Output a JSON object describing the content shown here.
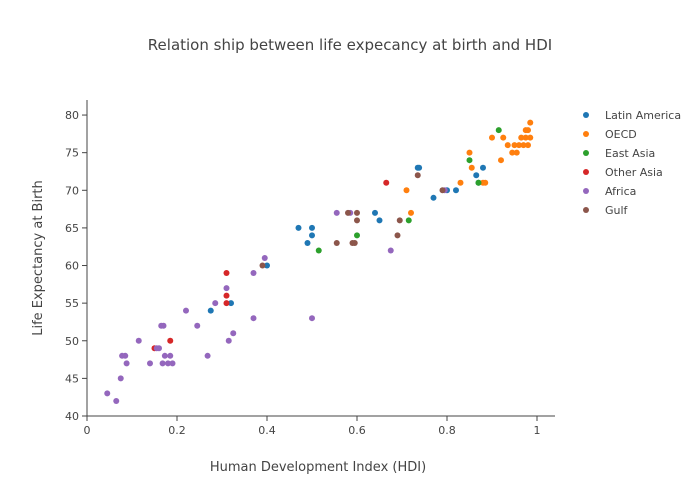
{
  "chart_data": {
    "type": "scatter",
    "title": "Relation ship between life expecancy at birth and HDI",
    "xlabel": "Human Development Index (HDI)",
    "ylabel": "Life Expectancy at Birth",
    "xlim": [
      0,
      1.04
    ],
    "ylim": [
      40,
      82
    ],
    "xticks": [
      0,
      0.2,
      0.4,
      0.6,
      0.8,
      1
    ],
    "xtick_labels": [
      "0",
      "0.2",
      "0.4",
      "0.6",
      "0.8",
      "1"
    ],
    "yticks": [
      40,
      45,
      50,
      55,
      60,
      65,
      70,
      75,
      80
    ],
    "ytick_labels": [
      "40",
      "45",
      "50",
      "55",
      "60",
      "65",
      "70",
      "75",
      "80"
    ],
    "grid": false,
    "legend_position": "top-right",
    "series": [
      {
        "name": "Latin America",
        "color": "#1f77b4",
        "points": [
          [
            0.275,
            54
          ],
          [
            0.32,
            55
          ],
          [
            0.4,
            60
          ],
          [
            0.47,
            65
          ],
          [
            0.49,
            63
          ],
          [
            0.5,
            65
          ],
          [
            0.5,
            64
          ],
          [
            0.64,
            67
          ],
          [
            0.65,
            66
          ],
          [
            0.735,
            73
          ],
          [
            0.738,
            73
          ],
          [
            0.77,
            69
          ],
          [
            0.8,
            70
          ],
          [
            0.82,
            70
          ],
          [
            0.865,
            72
          ],
          [
            0.87,
            71
          ],
          [
            0.88,
            73
          ]
        ]
      },
      {
        "name": "OECD",
        "color": "#ff7f0e",
        "points": [
          [
            0.71,
            70
          ],
          [
            0.72,
            67
          ],
          [
            0.83,
            71
          ],
          [
            0.85,
            75
          ],
          [
            0.855,
            73
          ],
          [
            0.88,
            71
          ],
          [
            0.885,
            71
          ],
          [
            0.9,
            77
          ],
          [
            0.92,
            74
          ],
          [
            0.925,
            77
          ],
          [
            0.935,
            76
          ],
          [
            0.945,
            75
          ],
          [
            0.95,
            76
          ],
          [
            0.955,
            75
          ],
          [
            0.96,
            76
          ],
          [
            0.965,
            77
          ],
          [
            0.97,
            76
          ],
          [
            0.975,
            77
          ],
          [
            0.975,
            78
          ],
          [
            0.98,
            78
          ],
          [
            0.98,
            76
          ],
          [
            0.985,
            79
          ],
          [
            0.985,
            77
          ]
        ]
      },
      {
        "name": "East Asia",
        "color": "#2ca02c",
        "points": [
          [
            0.515,
            62
          ],
          [
            0.6,
            64
          ],
          [
            0.715,
            66
          ],
          [
            0.85,
            74
          ],
          [
            0.87,
            71
          ],
          [
            0.915,
            78
          ]
        ]
      },
      {
        "name": "Other Asia",
        "color": "#d62728",
        "points": [
          [
            0.15,
            49
          ],
          [
            0.185,
            50
          ],
          [
            0.31,
            59
          ],
          [
            0.31,
            56
          ],
          [
            0.31,
            55
          ],
          [
            0.665,
            71
          ]
        ]
      },
      {
        "name": "Africa",
        "color": "#9467bd",
        "points": [
          [
            0.045,
            43
          ],
          [
            0.065,
            42
          ],
          [
            0.075,
            45
          ],
          [
            0.078,
            48
          ],
          [
            0.085,
            48
          ],
          [
            0.088,
            47
          ],
          [
            0.115,
            50
          ],
          [
            0.14,
            47
          ],
          [
            0.155,
            49
          ],
          [
            0.16,
            49
          ],
          [
            0.165,
            52
          ],
          [
            0.168,
            47
          ],
          [
            0.17,
            52
          ],
          [
            0.173,
            48
          ],
          [
            0.18,
            47
          ],
          [
            0.185,
            48
          ],
          [
            0.19,
            47
          ],
          [
            0.22,
            54
          ],
          [
            0.245,
            52
          ],
          [
            0.268,
            48
          ],
          [
            0.285,
            55
          ],
          [
            0.31,
            57
          ],
          [
            0.315,
            50
          ],
          [
            0.325,
            51
          ],
          [
            0.37,
            53
          ],
          [
            0.37,
            59
          ],
          [
            0.395,
            61
          ],
          [
            0.5,
            53
          ],
          [
            0.555,
            67
          ],
          [
            0.585,
            67
          ],
          [
            0.675,
            62
          ],
          [
            0.795,
            70
          ]
        ]
      },
      {
        "name": "Gulf",
        "color": "#8c564b",
        "points": [
          [
            0.39,
            60
          ],
          [
            0.555,
            63
          ],
          [
            0.58,
            67
          ],
          [
            0.59,
            63
          ],
          [
            0.595,
            63
          ],
          [
            0.6,
            66
          ],
          [
            0.6,
            67
          ],
          [
            0.69,
            64
          ],
          [
            0.695,
            66
          ],
          [
            0.735,
            72
          ],
          [
            0.79,
            70
          ]
        ]
      }
    ]
  }
}
